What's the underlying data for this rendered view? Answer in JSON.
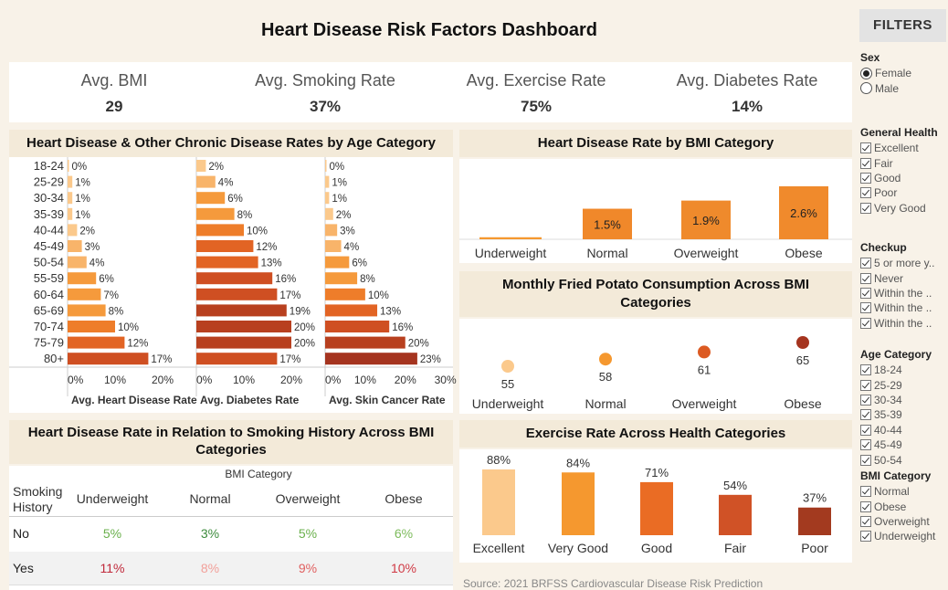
{
  "title": "Heart Disease Risk Factors Dashboard",
  "kpis": [
    {
      "label": "Avg. BMI",
      "value": "29"
    },
    {
      "label": "Avg. Smoking Rate",
      "value": "37%"
    },
    {
      "label": "Avg. Exercise Rate",
      "value": "75%"
    },
    {
      "label": "Avg. Diabetes Rate",
      "value": "14%"
    }
  ],
  "age_panel": {
    "title": "Heart Disease & Other Chronic Disease Rates by Age Category",
    "ages": [
      "18-24",
      "25-29",
      "30-34",
      "35-39",
      "40-44",
      "45-49",
      "50-54",
      "55-59",
      "60-64",
      "65-69",
      "70-74",
      "75-79",
      "80+"
    ]
  },
  "bmi_hd_panel": {
    "title": "Heart Disease Rate by BMI Category"
  },
  "potato_panel": {
    "title": "Monthly Fried Potato Consumption Across BMI Categories"
  },
  "smoking_panel": {
    "title": "Heart Disease Rate in Relation to Smoking History Across BMI Categories",
    "bmi_header": "BMI Category",
    "row_header": "Smoking History",
    "columns": [
      "Underweight",
      "Normal",
      "Overweight",
      "Obese"
    ],
    "rows": [
      {
        "label": "No",
        "values": [
          "5%",
          "3%",
          "5%",
          "6%"
        ],
        "colors": [
          "#6ab04c",
          "#3d8b3d",
          "#6ab04c",
          "#7dbb5c"
        ]
      },
      {
        "label": "Yes",
        "values": [
          "11%",
          "8%",
          "9%",
          "10%"
        ],
        "colors": [
          "#c0283a",
          "#f2a09a",
          "#e06060",
          "#d03a45"
        ]
      }
    ]
  },
  "exercise_panel": {
    "title": "Exercise Rate Across Health Categories"
  },
  "source": "Source: 2021 BRFSS Cardiovascular Disease Risk Prediction",
  "chart_data": [
    {
      "type": "bar",
      "name": "age-heart-disease",
      "categories": [
        "18-24",
        "25-29",
        "30-34",
        "35-39",
        "40-44",
        "45-49",
        "50-54",
        "55-59",
        "60-64",
        "65-69",
        "70-74",
        "75-79",
        "80+"
      ],
      "values": [
        0,
        1,
        1,
        1,
        2,
        3,
        4,
        6,
        7,
        8,
        10,
        12,
        17
      ],
      "labels": [
        "0%",
        "1%",
        "1%",
        "1%",
        "2%",
        "3%",
        "4%",
        "6%",
        "7%",
        "8%",
        "10%",
        "12%",
        "17%"
      ],
      "xlabel": "Avg. Heart Disease Rate",
      "ticks": [
        "0%",
        "10%",
        "20%"
      ],
      "xlim": [
        0,
        25
      ]
    },
    {
      "type": "bar",
      "name": "age-diabetes",
      "categories": [
        "18-24",
        "25-29",
        "30-34",
        "35-39",
        "40-44",
        "45-49",
        "50-54",
        "55-59",
        "60-64",
        "65-69",
        "70-74",
        "75-79",
        "80+"
      ],
      "values": [
        2,
        4,
        6,
        8,
        10,
        12,
        13,
        16,
        17,
        19,
        20,
        20,
        17
      ],
      "labels": [
        "2%",
        "4%",
        "6%",
        "8%",
        "10%",
        "12%",
        "13%",
        "16%",
        "17%",
        "19%",
        "20%",
        "20%",
        "17%"
      ],
      "xlabel": "Avg. Diabetes Rate",
      "ticks": [
        "0%",
        "10%",
        "20%"
      ],
      "xlim": [
        0,
        25
      ]
    },
    {
      "type": "bar",
      "name": "age-skin-cancer",
      "categories": [
        "18-24",
        "25-29",
        "30-34",
        "35-39",
        "40-44",
        "45-49",
        "50-54",
        "55-59",
        "60-64",
        "65-69",
        "70-74",
        "75-79",
        "80+"
      ],
      "values": [
        0,
        1,
        1,
        2,
        3,
        4,
        6,
        8,
        10,
        13,
        16,
        20,
        23
      ],
      "labels": [
        "0%",
        "1%",
        "1%",
        "2%",
        "3%",
        "4%",
        "6%",
        "8%",
        "10%",
        "13%",
        "16%",
        "20%",
        "23%"
      ],
      "xlabel": "Avg. Skin Cancer Rate",
      "ticks": [
        "0%",
        "10%",
        "20%",
        "30%"
      ],
      "xlim": [
        0,
        31
      ]
    },
    {
      "type": "bar",
      "name": "bmi-heart-disease",
      "categories": [
        "Underweight",
        "Normal",
        "Overweight",
        "Obese"
      ],
      "values": [
        0.1,
        1.5,
        1.9,
        2.6
      ],
      "labels": [
        "",
        "1.5%",
        "1.9%",
        "2.6%"
      ]
    },
    {
      "type": "scatter",
      "name": "bmi-fried-potato",
      "categories": [
        "Underweight",
        "Normal",
        "Overweight",
        "Obese"
      ],
      "values": [
        55,
        58,
        61,
        65
      ],
      "labels": [
        "55",
        "58",
        "61",
        "65"
      ],
      "colors": [
        "#fbc98c",
        "#f5982f",
        "#dc5a22",
        "#a5341f"
      ]
    },
    {
      "type": "bar",
      "name": "health-exercise",
      "categories": [
        "Excellent",
        "Very Good",
        "Good",
        "Fair",
        "Poor"
      ],
      "values": [
        88,
        84,
        71,
        54,
        37
      ],
      "labels": [
        "88%",
        "84%",
        "71%",
        "54%",
        "37%"
      ],
      "colors": [
        "#fbc98c",
        "#f5982f",
        "#ea6c24",
        "#d05226",
        "#a33a1f"
      ]
    }
  ],
  "filters": {
    "button": "FILTERS",
    "sex": {
      "title": "Sex",
      "options": [
        "Female",
        "Male"
      ],
      "selected": "Female"
    },
    "general_health": {
      "title": "General Health",
      "options": [
        "Excellent",
        "Fair",
        "Good",
        "Poor",
        "Very Good"
      ]
    },
    "checkup": {
      "title": "Checkup",
      "options": [
        "5 or more y..",
        "Never",
        "Within the ..",
        "Within the ..",
        "Within the .."
      ]
    },
    "age": {
      "title": "Age Category",
      "options": [
        "18-24",
        "25-29",
        "30-34",
        "35-39",
        "40-44",
        "45-49",
        "50-54"
      ]
    },
    "bmi": {
      "title": "BMI Category",
      "options": [
        "Normal",
        "Obese",
        "Overweight",
        "Underweight"
      ]
    }
  }
}
